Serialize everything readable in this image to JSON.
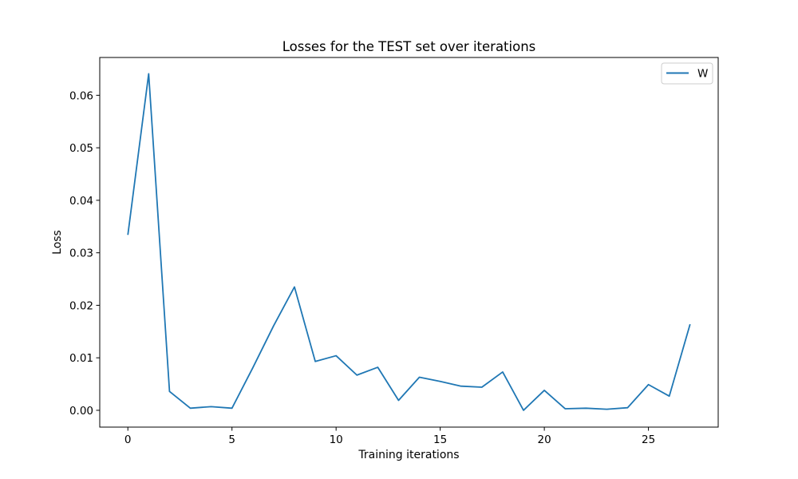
{
  "chart_data": {
    "type": "line",
    "title": "Losses for the TEST set over iterations",
    "xlabel": "Training iterations",
    "ylabel": "Loss",
    "xlim": [
      -1.35,
      28.35
    ],
    "ylim": [
      -0.0032,
      0.0672
    ],
    "xticks": [
      0,
      5,
      10,
      15,
      20,
      25
    ],
    "yticks": [
      0.0,
      0.01,
      0.02,
      0.03,
      0.04,
      0.05,
      0.06
    ],
    "ytick_labels": [
      "0.00",
      "0.01",
      "0.02",
      "0.03",
      "0.04",
      "0.05",
      "0.06"
    ],
    "grid": false,
    "legend": "upper right",
    "series": [
      {
        "name": "W",
        "color": "#1f77b4",
        "x": [
          0,
          1,
          2,
          3,
          4,
          5,
          6,
          7,
          8,
          9,
          10,
          11,
          12,
          13,
          14,
          15,
          16,
          17,
          18,
          19,
          20,
          21,
          22,
          23,
          24,
          25,
          26,
          27
        ],
        "values": [
          0.0334,
          0.0641,
          0.0036,
          0.0004,
          0.0007,
          0.0004,
          0.0081,
          0.0161,
          0.0235,
          0.0093,
          0.0104,
          0.0067,
          0.0082,
          0.0019,
          0.0063,
          0.0055,
          0.0046,
          0.0044,
          0.0073,
          0.0,
          0.0038,
          0.0003,
          0.0004,
          0.0002,
          0.0005,
          0.0049,
          0.0027,
          0.0164
        ]
      }
    ]
  }
}
